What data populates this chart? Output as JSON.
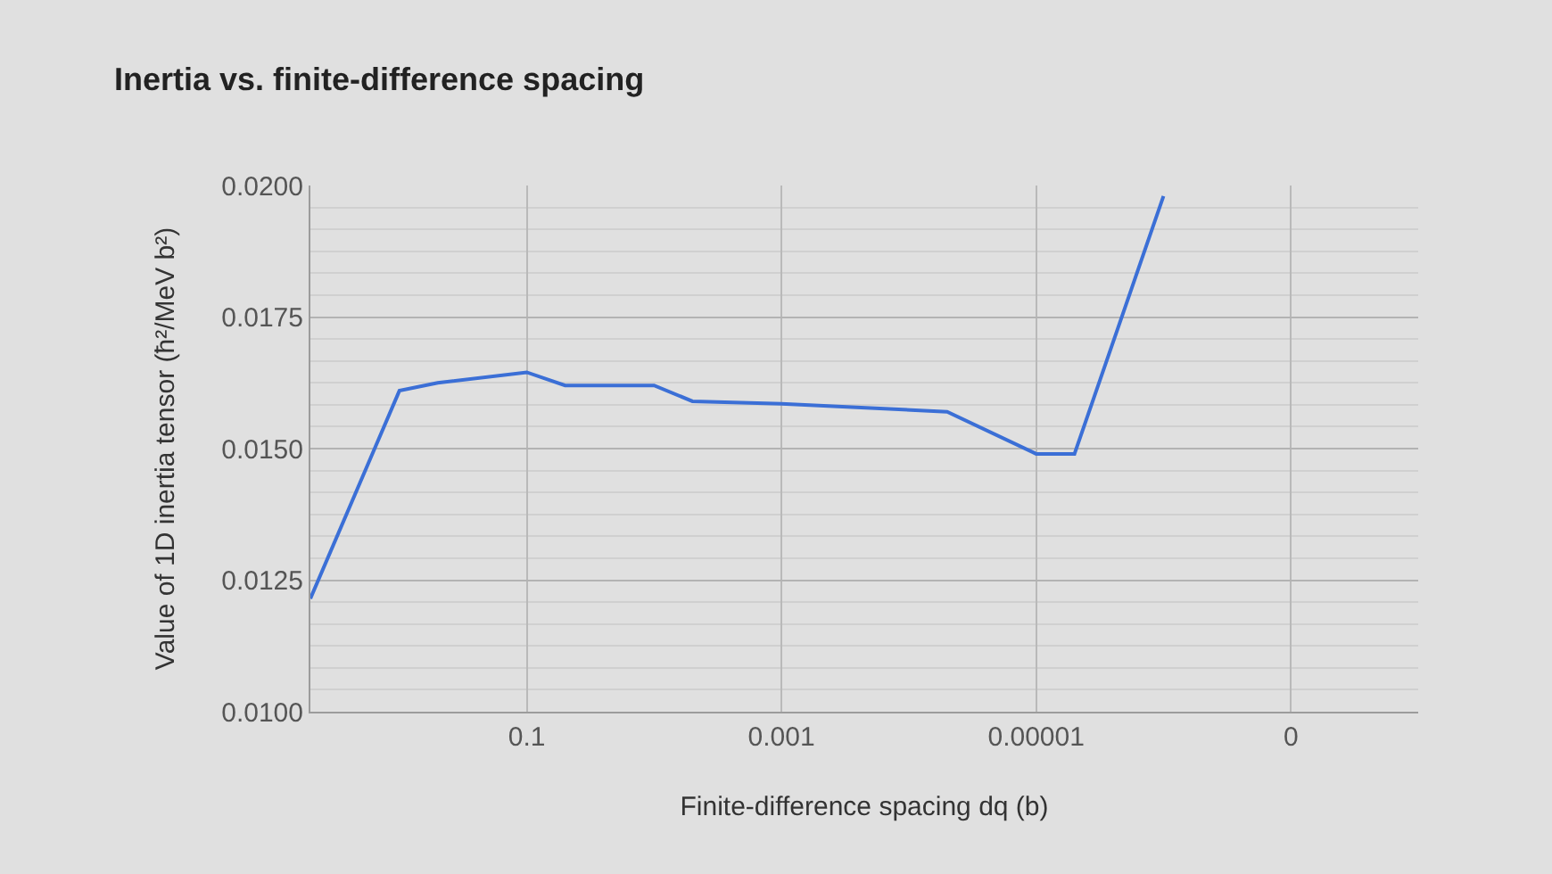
{
  "chart_data": {
    "type": "line",
    "title": "Inertia vs. finite-difference spacing",
    "xlabel": "Finite-difference spacing dq (b)",
    "ylabel": "Value of 1D inertia tensor (ħ²/MeV b²)",
    "x": [
      5,
      1,
      0.5,
      0.1,
      0.05,
      0.01,
      0.005,
      0.001,
      5e-05,
      1e-05,
      5e-06,
      1e-06
    ],
    "series": [
      {
        "color": "#3b6fd6",
        "values": [
          0.01215,
          0.0161,
          0.01625,
          0.01645,
          0.0162,
          0.0162,
          0.0159,
          0.01585,
          0.0157,
          0.0149,
          0.0149,
          0.0198
        ]
      }
    ],
    "log": "x",
    "xlim": [
      5,
      1e-08
    ],
    "xticks": [
      0.1,
      0.001,
      {
        "value": 1e-05,
        "label": "0.00001"
      },
      {
        "value": 1e-07,
        "label": "0"
      }
    ],
    "ylim": [
      0.01,
      0.02
    ],
    "yticks": [
      {
        "value": 0.01,
        "label": "0.0100"
      },
      {
        "value": 0.0125,
        "label": "0.0125"
      },
      {
        "value": 0.015,
        "label": "0.0150"
      },
      {
        "value": 0.0175,
        "label": "0.0175"
      },
      {
        "value": 0.02,
        "label": "0.0200"
      }
    ],
    "grid": true,
    "marker": "none",
    "line_style": "solid"
  }
}
